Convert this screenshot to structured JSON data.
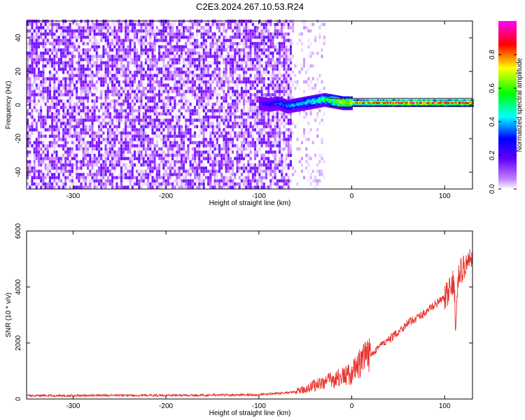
{
  "title": "C2E3.2024.267.10.53.R24",
  "chart_data": [
    {
      "type": "heatmap",
      "xlabel": "Height of straight line (km)",
      "ylabel": "Frequency (Hz)",
      "xlim": [
        -350,
        130
      ],
      "ylim": [
        -50,
        50
      ],
      "xticks": [
        -300,
        -200,
        -100,
        0,
        100
      ],
      "yticks": [
        -40,
        -20,
        0,
        20,
        40
      ],
      "colorbar": {
        "label": "Normalized spectral amplitude",
        "range": [
          0.0,
          1.0
        ],
        "ticks": [
          "0.0",
          "0.2",
          "0.4",
          "0.6",
          "0.8"
        ],
        "colormap": [
          "#ffffff",
          "#8000ff",
          "#0000ff",
          "#00ffff",
          "#00ff00",
          "#ffff00",
          "#ff0000",
          "#ff00ff"
        ]
      },
      "noise_region": {
        "x_start": -350,
        "x_end": -65,
        "freq_range": [
          -50,
          50
        ],
        "amplitude": 0.1
      },
      "faint_noise_region": {
        "x_start": -65,
        "x_end": -30,
        "amplitude": 0.05
      },
      "signal_line": {
        "x": [
          -100,
          -90,
          -80,
          -70,
          -60,
          -50,
          -40,
          -30,
          -20,
          -10,
          0,
          20,
          40,
          60,
          80,
          100,
          110,
          120,
          130
        ],
        "freq": [
          1,
          0,
          1,
          -1,
          0,
          1,
          2,
          3,
          2,
          1,
          1,
          1,
          1,
          1,
          1,
          1,
          1,
          1,
          1
        ],
        "amplitude": [
          0.2,
          0.3,
          0.35,
          0.4,
          0.45,
          0.5,
          0.55,
          0.6,
          0.7,
          0.8,
          0.85,
          0.9,
          0.95,
          1.0,
          1.0,
          1.0,
          0.9,
          1.0,
          1.0
        ]
      }
    },
    {
      "type": "line",
      "xlabel": "Height of straight line (km)",
      "ylabel": "SNR (10 * v/v)",
      "xlim": [
        -350,
        130
      ],
      "ylim": [
        0,
        6000
      ],
      "xticks": [
        -300,
        -200,
        -100,
        0,
        100
      ],
      "yticks": [
        0,
        2000,
        4000,
        6000
      ],
      "series": [
        {
          "color": "#e8302a",
          "x": [
            -350,
            -300,
            -250,
            -200,
            -150,
            -100,
            -80,
            -60,
            -50,
            -40,
            -30,
            -20,
            -10,
            0,
            10,
            20,
            30,
            40,
            50,
            60,
            70,
            80,
            90,
            100,
            105,
            110,
            112,
            115,
            120,
            130
          ],
          "y": [
            120,
            120,
            130,
            130,
            140,
            150,
            200,
            250,
            350,
            500,
            600,
            700,
            800,
            900,
            1300,
            1600,
            1900,
            2100,
            2400,
            2700,
            2900,
            3100,
            3400,
            3600,
            3800,
            4300,
            2600,
            4400,
            4700,
            5000
          ]
        }
      ]
    }
  ]
}
